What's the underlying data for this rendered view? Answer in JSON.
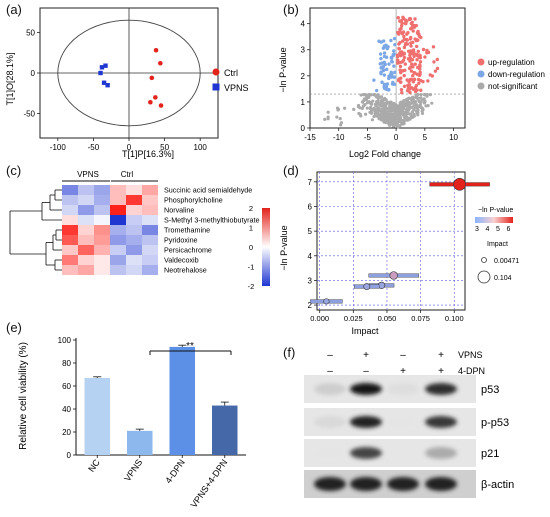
{
  "panels": {
    "a": "(a)",
    "b": "(b)",
    "c": "(c)",
    "d": "(d)",
    "e": "(e)",
    "f": "(f)"
  },
  "panel_a": {
    "xlabel": "T[1]P[16.3%]",
    "ylabel": "T[1]O[28.1%]",
    "xticks": [
      "-100",
      "-50",
      "0",
      "50",
      "100"
    ],
    "yticks": [
      "-50",
      "0",
      "50"
    ],
    "legend": [
      {
        "label": "Ctrl",
        "color": "#e3221b",
        "shape": "circle"
      },
      {
        "label": "VPNS",
        "color": "#1f36d1",
        "shape": "square"
      }
    ],
    "chart_data": {
      "type": "scatter",
      "xlim": [
        -125,
        125
      ],
      "ylim": [
        -80,
        80
      ],
      "series": [
        {
          "name": "Ctrl",
          "points": [
            [
              38,
              28
            ],
            [
              44,
              12
            ],
            [
              32,
              -6
            ],
            [
              37,
              -30
            ],
            [
              45,
              -40
            ],
            [
              30,
              -36
            ]
          ]
        },
        {
          "name": "VPNS",
          "points": [
            [
              -38,
              7
            ],
            [
              -33,
              9
            ],
            [
              -40,
              0
            ],
            [
              -35,
              -12
            ],
            [
              -30,
              -15
            ]
          ]
        }
      ]
    }
  },
  "panel_b": {
    "xlabel": "Log2 Fold change",
    "ylabel": "−ln P-value",
    "xticks": [
      "-15",
      "-10",
      "-5",
      "0",
      "5",
      "10"
    ],
    "yticks": [
      "0",
      "1",
      "2",
      "3",
      "4"
    ],
    "legend": [
      {
        "label": "up-regulation",
        "color": "#f07070"
      },
      {
        "label": "down-regulation",
        "color": "#7ba7e6"
      },
      {
        "label": "not-significant",
        "color": "#aaaaaa"
      }
    ],
    "chart_data": {
      "type": "scatter",
      "xlim": [
        -15,
        12
      ],
      "ylim": [
        0,
        4.6
      ],
      "threshold_y": 1.3,
      "threshold_x": 0
    }
  },
  "panel_c": {
    "groups": [
      "VPNS",
      "Ctrl"
    ],
    "rows": [
      "Succinic acid semialdehyde",
      "Phosphorylcholine",
      "Norvaline",
      "S-Methyl 3-methylthiobutyrate",
      "Tromethamine",
      "Pyridoxine",
      "Persicachrome",
      "Valdecoxib",
      "Neotrehalose"
    ],
    "scale_ticks": [
      "2",
      "1",
      "0",
      "-1",
      "-2"
    ],
    "chart_data": {
      "type": "heatmap",
      "columns": [
        "VPNS",
        "VPNS",
        "VPNS",
        "Ctrl",
        "Ctrl",
        "Ctrl"
      ],
      "values": [
        [
          -1.2,
          -0.6,
          -0.9,
          0.6,
          0.3,
          0.8
        ],
        [
          -0.6,
          -0.4,
          -0.8,
          0.6,
          1.8,
          0.5
        ],
        [
          -0.4,
          -1.0,
          -0.6,
          2.0,
          0.4,
          0.6
        ],
        [
          0.3,
          -0.3,
          -0.1,
          -2.0,
          -0.5,
          -0.3
        ],
        [
          1.8,
          0.4,
          1.0,
          -0.8,
          -0.6,
          -1.2
        ],
        [
          1.5,
          0.6,
          0.9,
          -1.0,
          -0.8,
          -0.6
        ],
        [
          0.5,
          1.4,
          0.7,
          -0.5,
          -1.0,
          -0.4
        ],
        [
          1.2,
          0.4,
          0.2,
          -0.9,
          -0.3,
          -0.5
        ],
        [
          0.6,
          0.8,
          0.2,
          -0.6,
          -0.4,
          -0.8
        ]
      ]
    }
  },
  "panel_d": {
    "xlabel": "Impact",
    "ylabel": "−ln P-value",
    "xticks": [
      "0.000",
      "0.025",
      "0.050",
      "0.075",
      "0.100"
    ],
    "yticks": [
      "2",
      "3",
      "4",
      "5",
      "6",
      "7"
    ],
    "legend_title": "−ln P-value",
    "legend_ticks": [
      "3",
      "4",
      "5",
      "6"
    ],
    "impact_title": "Impact",
    "impact_values": [
      "0.00471",
      "0.104"
    ],
    "chart_data": {
      "type": "scatter",
      "xlim": [
        -0.002,
        0.108
      ],
      "ylim": [
        1.8,
        7.4
      ],
      "points": [
        {
          "x": 0.104,
          "y": 6.9,
          "impact": 0.104
        },
        {
          "x": 0.055,
          "y": 3.2,
          "impact": 0.025
        },
        {
          "x": 0.046,
          "y": 2.8,
          "impact": 0.015
        },
        {
          "x": 0.035,
          "y": 2.75,
          "impact": 0.012
        },
        {
          "x": 0.005,
          "y": 2.15,
          "impact": 0.00471
        }
      ]
    }
  },
  "panel_e": {
    "ylabel": "Relative cell viability (%)",
    "yticks": [
      "0",
      "20",
      "40",
      "60",
      "80",
      "100"
    ],
    "significance": "**",
    "chart_data": {
      "type": "bar",
      "categories": [
        "NC",
        "VPNS",
        "4-DPN",
        "VPNS+4-DPN"
      ],
      "values": [
        67,
        21,
        94,
        43
      ],
      "errors": [
        1,
        1.5,
        1.5,
        3
      ],
      "colors": [
        "#b6d2f3",
        "#8db8ee",
        "#5c8fe6",
        "#4569a8"
      ],
      "ylim": [
        0,
        100
      ]
    }
  },
  "panel_f": {
    "conditions": [
      {
        "name": "VPNS",
        "marks": [
          "–",
          "+",
          "–",
          "+"
        ]
      },
      {
        "name": "4-DPN",
        "marks": [
          "–",
          "–",
          "+",
          "+"
        ]
      }
    ],
    "bands": [
      "p53",
      "p-p53",
      "p21",
      "β-actin"
    ]
  }
}
